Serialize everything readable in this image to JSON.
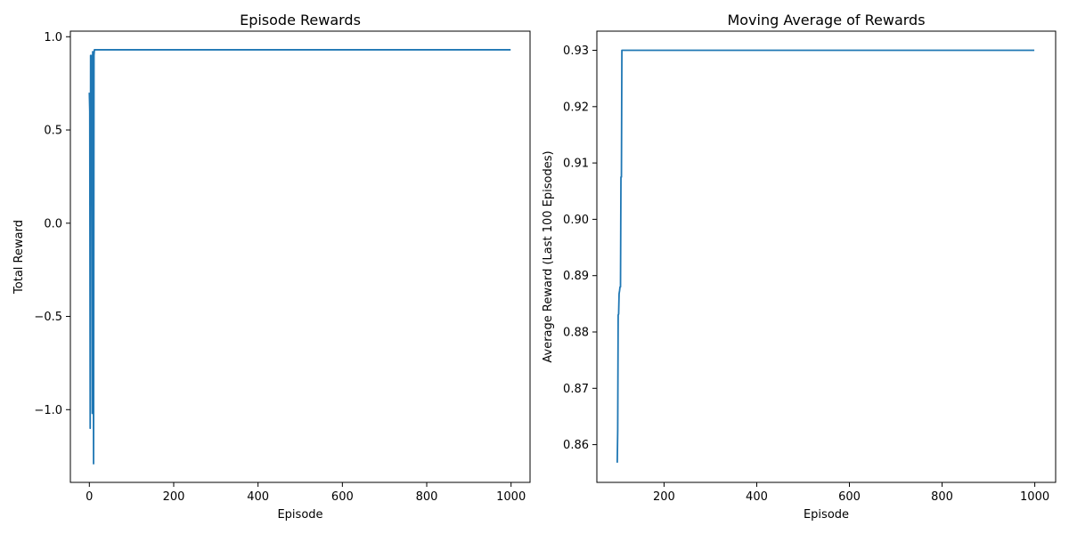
{
  "chart_data": [
    {
      "type": "line",
      "title": "Episode Rewards",
      "xlabel": "Episode",
      "ylabel": "Total Reward",
      "xlim": [
        -45,
        1045
      ],
      "ylim": [
        -1.39,
        1.03
      ],
      "xticks": [
        0,
        200,
        400,
        600,
        800,
        1000
      ],
      "xtick_labels": [
        "0",
        "200",
        "400",
        "600",
        "800",
        "1000"
      ],
      "yticks": [
        -1.0,
        -0.5,
        0.0,
        0.5,
        1.0
      ],
      "ytick_labels": [
        "−1.0",
        "−0.5",
        "0.0",
        "0.5",
        "1.0"
      ],
      "grid": false,
      "color": "#1f77b4",
      "series": [
        {
          "x": [
            0,
            1,
            2,
            3,
            4,
            5,
            6,
            7,
            8,
            9,
            10,
            11,
            12,
            13,
            14,
            15,
            16,
            999
          ],
          "y": [
            0.7,
            0.6,
            -1.1,
            0.9,
            0.58,
            0.88,
            0.9,
            -1.02,
            0.92,
            0.62,
            -1.29,
            0.9,
            0.93,
            0.93,
            0.93,
            0.93,
            0.93,
            0.93
          ]
        }
      ]
    },
    {
      "type": "line",
      "title": "Moving Average of Rewards",
      "xlabel": "Episode",
      "ylabel": "Average Reward (Last 100 Episodes)",
      "xlim": [
        55,
        1045
      ],
      "ylim": [
        0.8533,
        0.9334
      ],
      "xticks": [
        200,
        400,
        600,
        800,
        1000
      ],
      "xtick_labels": [
        "200",
        "400",
        "600",
        "800",
        "1000"
      ],
      "yticks": [
        0.86,
        0.87,
        0.88,
        0.89,
        0.9,
        0.91,
        0.92,
        0.93
      ],
      "ytick_labels": [
        "0.86",
        "0.87",
        "0.88",
        "0.89",
        "0.90",
        "0.91",
        "0.92",
        "0.93"
      ],
      "grid": false,
      "color": "#1f77b4",
      "series": [
        {
          "x": [
            99,
            100,
            101,
            102,
            103,
            104,
            105,
            106,
            107,
            108,
            109,
            110,
            111,
            999
          ],
          "y": [
            0.8568,
            0.8625,
            0.883,
            0.8832,
            0.8868,
            0.8873,
            0.888,
            0.888,
            0.9075,
            0.9075,
            0.93,
            0.93,
            0.93,
            0.93
          ]
        }
      ]
    }
  ]
}
